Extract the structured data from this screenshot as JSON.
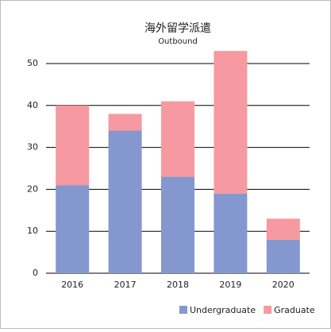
{
  "chart_data": {
    "type": "stacked_bar",
    "title": "海外留学派遣",
    "subtitle": "Outbound",
    "categories": [
      "2016",
      "2017",
      "2018",
      "2019",
      "2020"
    ],
    "series": [
      {
        "name": "Undergraduate",
        "color": "#8497cf",
        "values": [
          21,
          34,
          23,
          19,
          8
        ]
      },
      {
        "name": "Graduate",
        "color": "#f799a0",
        "values": [
          19,
          4,
          18,
          34,
          5
        ]
      }
    ],
    "ylim": [
      0,
      55
    ],
    "yticks": [
      0,
      10,
      20,
      30,
      40,
      50
    ],
    "grid": true,
    "legend": "bottom-right"
  }
}
